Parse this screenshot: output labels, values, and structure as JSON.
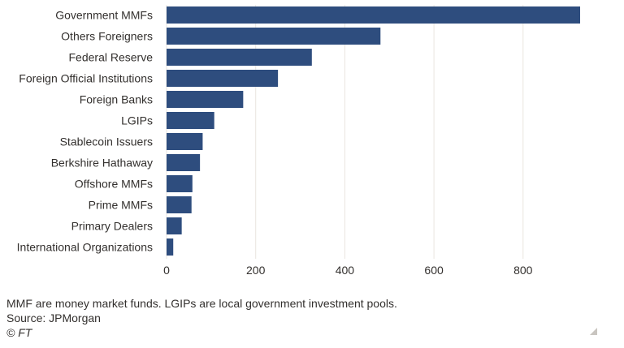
{
  "chart_data": {
    "type": "bar",
    "orientation": "horizontal",
    "categories": [
      "Government MMFs",
      "Others Foreigners",
      "Federal Reserve",
      "Foreign Official Institutions",
      "Foreign Banks",
      "LGIPs",
      "Stablecoin Issuers",
      "Berkshire Hathaway",
      "Offshore MMFs",
      "Prime MMFs",
      "Primary Dealers",
      "International Organizations"
    ],
    "values": [
      928,
      480,
      326,
      250,
      172,
      107,
      81,
      75,
      58,
      56,
      34,
      15
    ],
    "xlim": [
      0,
      928
    ],
    "xticks": [
      0,
      200,
      400,
      600,
      800
    ],
    "grid": true,
    "bar_color": "#2e4d7e",
    "title": "",
    "xlabel": "",
    "ylabel": ""
  },
  "footer": {
    "note": "MMF are money market funds. LGIPs are local government investment pools.",
    "source": "Source: JPMorgan",
    "credit": "© FT"
  }
}
